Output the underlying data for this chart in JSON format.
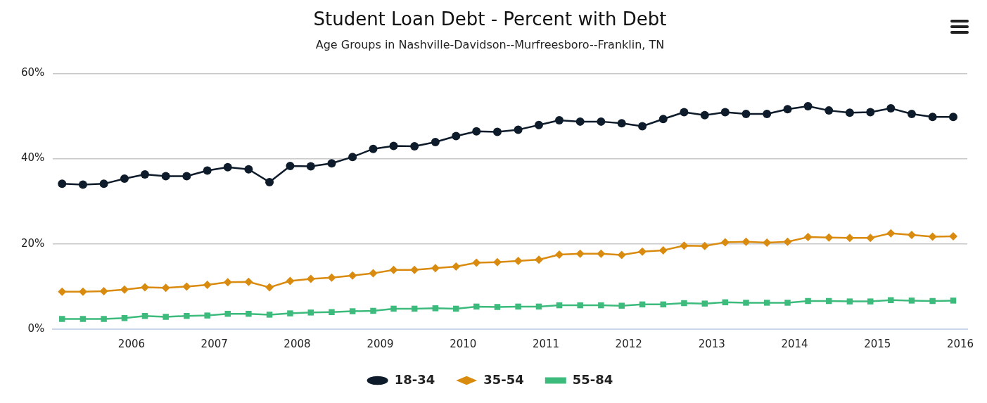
{
  "chart_data": {
    "type": "line",
    "title": "Student Loan Debt - Percent with Debt",
    "subtitle": "Age Groups in Nashville-Davidson--Murfreesboro--Franklin, TN",
    "x": [
      "2005-03",
      "2005-06",
      "2005-09",
      "2005-12",
      "2006-03",
      "2006-06",
      "2006-09",
      "2006-12",
      "2007-03",
      "2007-06",
      "2007-09",
      "2007-12",
      "2008-03",
      "2008-06",
      "2008-09",
      "2008-12",
      "2009-03",
      "2009-06",
      "2009-09",
      "2009-12",
      "2010-03",
      "2010-06",
      "2010-09",
      "2010-12",
      "2011-03",
      "2011-06",
      "2011-09",
      "2011-12",
      "2012-03",
      "2012-06",
      "2012-09",
      "2012-12",
      "2013-03",
      "2013-06",
      "2013-09",
      "2013-12",
      "2014-03",
      "2014-06",
      "2014-09",
      "2014-12",
      "2015-03",
      "2015-06",
      "2015-09",
      "2015-12"
    ],
    "series": [
      {
        "name": "18-34",
        "color": "#0d1b2a",
        "marker": "circle",
        "values": [
          34.1,
          33.9,
          34.1,
          35.3,
          36.3,
          35.9,
          35.9,
          37.2,
          38.0,
          37.5,
          34.5,
          38.3,
          38.2,
          38.9,
          40.4,
          42.3,
          43.0,
          42.9,
          43.9,
          45.3,
          46.4,
          46.3,
          46.8,
          47.9,
          49.0,
          48.7,
          48.7,
          48.3,
          47.6,
          49.3,
          50.9,
          50.2,
          50.9,
          50.5,
          50.5,
          51.6,
          52.3,
          51.3,
          50.8,
          50.9,
          51.8,
          50.5,
          49.8,
          49.8
        ]
      },
      {
        "name": "35-54",
        "color": "#d98b0f",
        "marker": "diamond",
        "values": [
          8.8,
          8.8,
          8.9,
          9.3,
          9.8,
          9.7,
          10.0,
          10.4,
          11.0,
          11.1,
          9.8,
          11.3,
          11.8,
          12.1,
          12.6,
          13.1,
          13.9,
          13.9,
          14.3,
          14.7,
          15.6,
          15.7,
          16.0,
          16.3,
          17.5,
          17.7,
          17.7,
          17.4,
          18.2,
          18.5,
          19.6,
          19.5,
          20.4,
          20.5,
          20.3,
          20.5,
          21.6,
          21.5,
          21.4,
          21.4,
          22.5,
          22.1,
          21.7,
          21.8
        ]
      },
      {
        "name": "55-84",
        "color": "#3dbb7d",
        "marker": "square",
        "values": [
          2.4,
          2.4,
          2.4,
          2.6,
          3.1,
          2.9,
          3.1,
          3.2,
          3.6,
          3.6,
          3.4,
          3.7,
          3.9,
          4.0,
          4.2,
          4.3,
          4.8,
          4.8,
          4.9,
          4.8,
          5.3,
          5.2,
          5.3,
          5.3,
          5.6,
          5.6,
          5.6,
          5.5,
          5.8,
          5.8,
          6.1,
          6.0,
          6.3,
          6.2,
          6.2,
          6.2,
          6.6,
          6.6,
          6.5,
          6.5,
          6.8,
          6.7,
          6.6,
          6.7
        ]
      }
    ],
    "xlim": [
      "2005-01-20",
      "2016-02-01"
    ],
    "xticks": [
      "2006",
      "2007",
      "2008",
      "2009",
      "2010",
      "2011",
      "2012",
      "2013",
      "2014",
      "2015",
      "2016"
    ],
    "ylim": [
      0,
      60
    ],
    "yticks": [
      {
        "value": 0,
        "label": "0%"
      },
      {
        "value": 20,
        "label": "20%"
      },
      {
        "value": 40,
        "label": "40%"
      },
      {
        "value": 60,
        "label": "60%"
      }
    ],
    "grid": "y",
    "legend": "bottom"
  }
}
